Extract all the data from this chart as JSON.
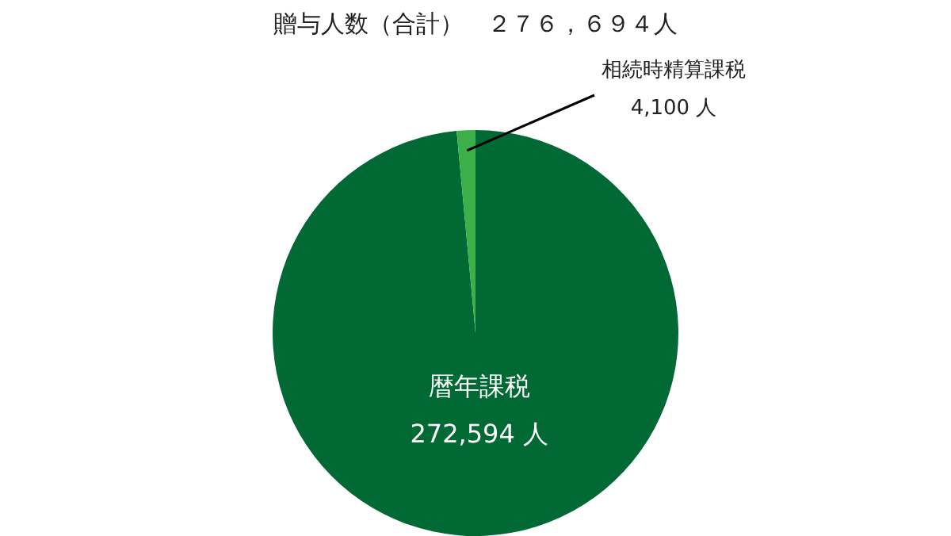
{
  "chart_data": {
    "type": "pie",
    "title": "贈与人数（合計）　２７６，６９４人",
    "categories": [
      "暦年課税",
      "相続時精算課税"
    ],
    "values": [
      272594,
      4100
    ],
    "colors": [
      "#006934",
      "#3daf49"
    ],
    "value_labels": [
      "272,594 人",
      "4,100 人"
    ]
  }
}
